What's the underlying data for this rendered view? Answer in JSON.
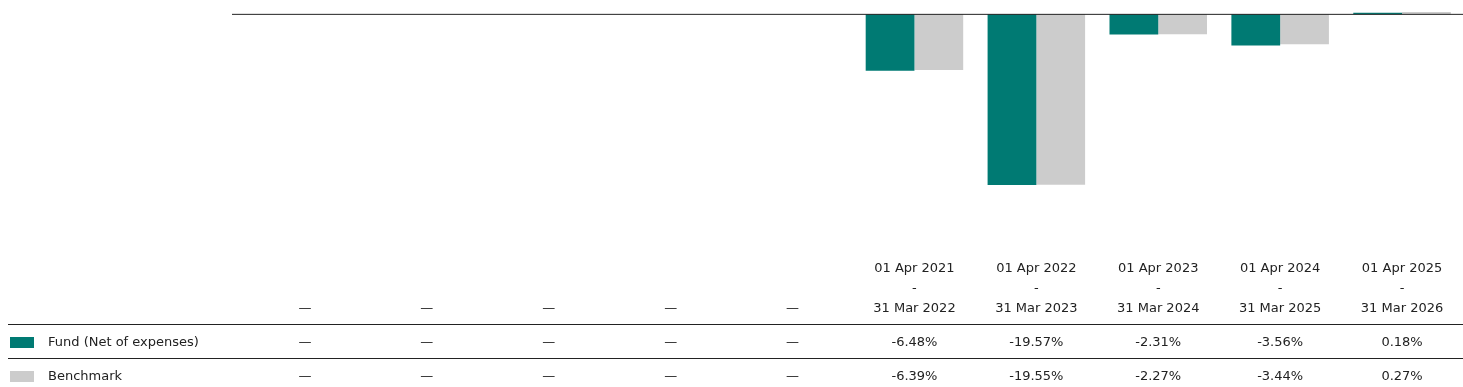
{
  "chart_data": {
    "type": "bar",
    "categories": [
      "—",
      "—",
      "—",
      "—",
      "—",
      "01 Apr 2021\n-\n31 Mar 2022",
      "01 Apr 2022\n-\n31 Mar 2023",
      "01 Apr 2023\n-\n31 Mar 2024",
      "01 Apr 2024\n-\n31 Mar 2025",
      "01 Apr 2025\n-\n31 Mar 2026"
    ],
    "series": [
      {
        "name": "Fund (Net of expenses)",
        "color": "#007a73",
        "values": [
          null,
          null,
          null,
          null,
          null,
          -6.48,
          -19.57,
          -2.31,
          -3.56,
          0.18
        ],
        "value_labels": [
          "—",
          "—",
          "—",
          "—",
          "—",
          "-6.48%",
          "-19.57%",
          "-2.31%",
          "-3.56%",
          "0.18%"
        ]
      },
      {
        "name": "Benchmark",
        "color": "#cccccc",
        "values": [
          null,
          null,
          null,
          null,
          null,
          -6.39,
          -19.55,
          -2.27,
          -3.44,
          0.27
        ],
        "value_labels": [
          "—",
          "—",
          "—",
          "—",
          "—",
          "-6.39%",
          "-19.55%",
          "-2.27%",
          "-3.44%",
          "0.27%"
        ]
      }
    ],
    "legend": "bottom left"
  }
}
